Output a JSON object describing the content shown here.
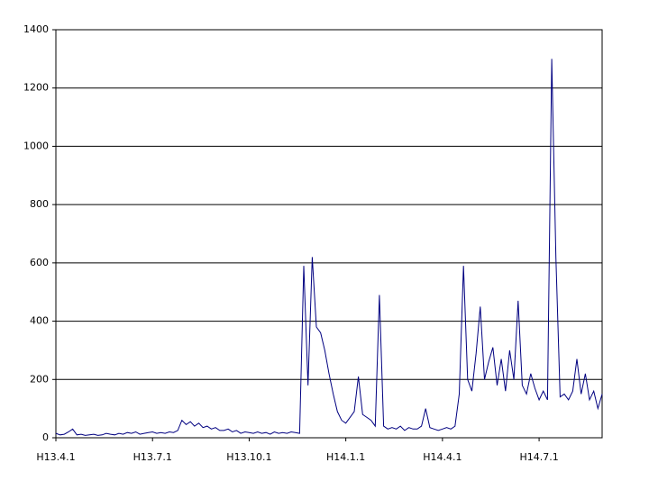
{
  "chart_data": {
    "type": "line",
    "categories": [
      "H13.4.1",
      null,
      null,
      null,
      null,
      null,
      null,
      null,
      null,
      null,
      null,
      null,
      null,
      null,
      null,
      null,
      null,
      null,
      null,
      null,
      null,
      null,
      null,
      "H13.7.1",
      null,
      null,
      null,
      null,
      null,
      null,
      null,
      null,
      null,
      null,
      null,
      null,
      null,
      null,
      null,
      null,
      null,
      null,
      null,
      null,
      null,
      null,
      "H13.10.1",
      null,
      null,
      null,
      null,
      null,
      null,
      null,
      null,
      null,
      null,
      null,
      null,
      null,
      null,
      null,
      null,
      null,
      null,
      null,
      null,
      null,
      null,
      "H14.1.1",
      null,
      null,
      null,
      null,
      null,
      null,
      null,
      null,
      null,
      null,
      null,
      null,
      null,
      null,
      null,
      null,
      null,
      null,
      null,
      null,
      null,
      null,
      "H14.4.1",
      null,
      null,
      null,
      null,
      null,
      null,
      null,
      null,
      null,
      null,
      null,
      null,
      null,
      null,
      null,
      null,
      null,
      null,
      null,
      null,
      null,
      null,
      "H14.7.1",
      null,
      null,
      null,
      null,
      null,
      null,
      null,
      null,
      null,
      null,
      null,
      null,
      null,
      null,
      null
    ],
    "values": [
      15,
      10,
      12,
      20,
      30,
      10,
      12,
      8,
      10,
      12,
      8,
      10,
      15,
      12,
      10,
      15,
      12,
      18,
      15,
      20,
      12,
      15,
      18,
      20,
      15,
      18,
      15,
      20,
      18,
      25,
      60,
      45,
      55,
      40,
      50,
      35,
      40,
      30,
      35,
      25,
      25,
      30,
      20,
      25,
      15,
      20,
      18,
      15,
      20,
      15,
      18,
      12,
      20,
      15,
      18,
      15,
      20,
      18,
      15,
      590,
      180,
      620,
      380,
      360,
      300,
      220,
      150,
      90,
      60,
      50,
      70,
      90,
      210,
      80,
      70,
      60,
      40,
      490,
      40,
      30,
      35,
      30,
      40,
      25,
      35,
      30,
      30,
      40,
      100,
      35,
      30,
      25,
      30,
      35,
      30,
      40,
      150,
      590,
      200,
      160,
      290,
      450,
      200,
      260,
      310,
      180,
      270,
      160,
      300,
      200,
      470,
      180,
      150,
      220,
      170,
      130,
      160,
      130,
      1300,
      620,
      140,
      150,
      130,
      160,
      270,
      150,
      220,
      130,
      160,
      100,
      150
    ],
    "color": "#000080",
    "ylim": [
      0,
      1400
    ],
    "yticks": [
      0,
      200,
      400,
      600,
      800,
      1000,
      1200,
      1400
    ],
    "grid": true
  }
}
